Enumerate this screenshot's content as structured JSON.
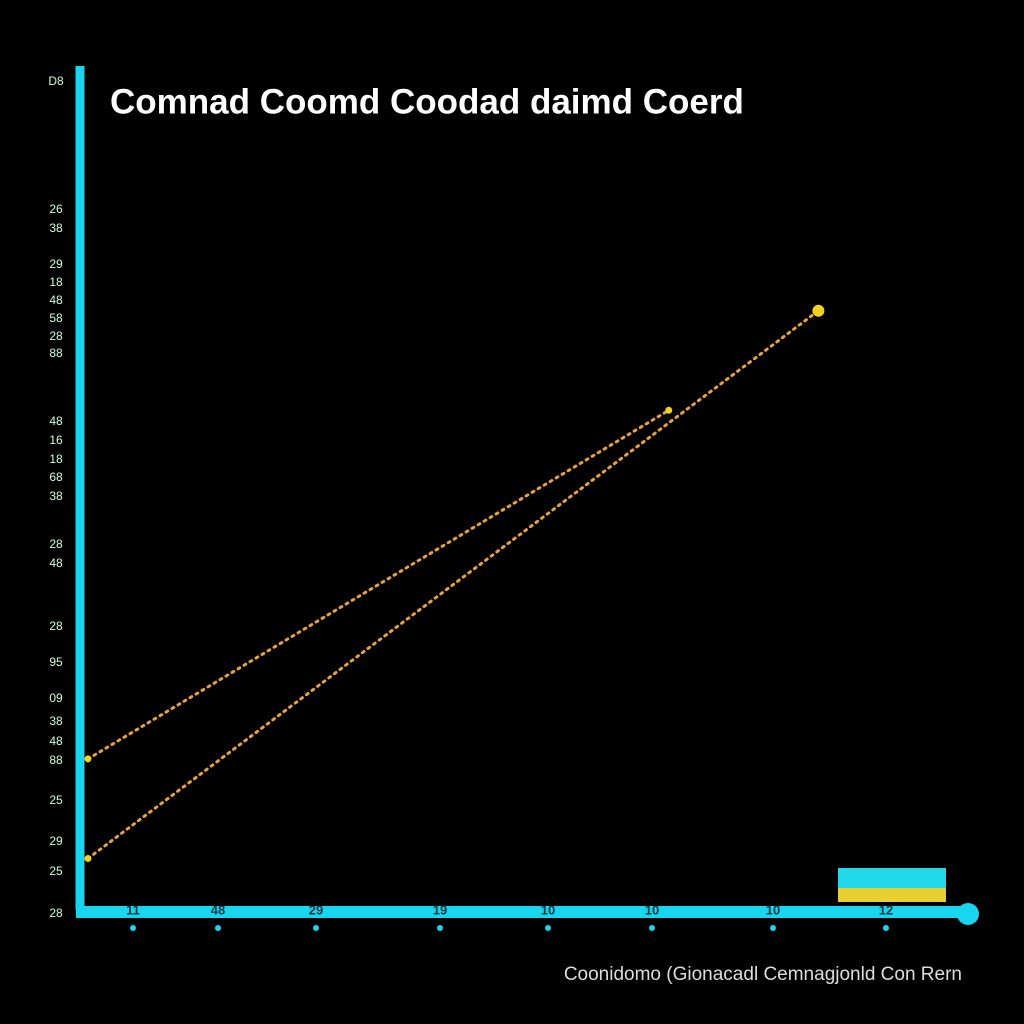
{
  "chart_data": {
    "type": "line",
    "title": "Comnad Coomd Coodad daimd Coerd",
    "footer": "Coonidomo (Gionacadl Cemnagjonld Con Rern",
    "xlim": [
      0,
      100
    ],
    "ylim": [
      0,
      100
    ],
    "series": [
      {
        "color": "#e8a040",
        "x": [
          0,
          66
        ],
        "values": [
          17,
          59
        ]
      },
      {
        "color": "#e8a040",
        "x": [
          0,
          83
        ],
        "values": [
          5,
          71
        ]
      }
    ],
    "y_axis_labels": [
      "D8",
      "26",
      "38",
      "29",
      "18",
      "48",
      "58",
      "28",
      "88",
      "48",
      "16",
      "18",
      "68",
      "38",
      "28",
      "48",
      "28",
      "95",
      "09",
      "38",
      "48",
      "88",
      "25",
      "29",
      "25",
      "28"
    ],
    "x_axis_labels": [
      "11",
      "48",
      "29",
      "19",
      "10",
      "10",
      "10",
      "12"
    ]
  }
}
